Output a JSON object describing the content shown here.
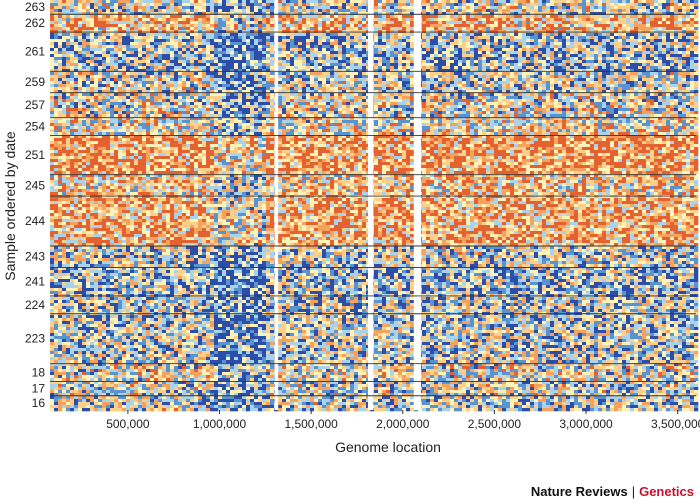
{
  "chart_data": {
    "type": "heatmap",
    "title": "",
    "xlabel": "Genome location",
    "ylabel": "Sample ordered by date",
    "xlim": [
      75000,
      3600000
    ],
    "x_ticks": [
      500000,
      1000000,
      1500000,
      2000000,
      2500000,
      3000000,
      3500000
    ],
    "x_tick_labels": [
      "500,000",
      "1,000,000",
      "1,500,000",
      "2,000,000",
      "2,500,000",
      "3,000,000",
      "3,500,000"
    ],
    "samples_top_to_bottom": [
      "263",
      "262",
      "261",
      "259",
      "257",
      "254",
      "251",
      "245",
      "244",
      "243",
      "241",
      "224",
      "223",
      "18",
      "17",
      "16"
    ],
    "sample_row_share": [
      4,
      5,
      11,
      6,
      7,
      5,
      11,
      6,
      14,
      6,
      8,
      5,
      14,
      5,
      4,
      4
    ],
    "gaps_genome_location": [
      [
        1300000,
        1320000
      ],
      [
        1810000,
        1840000
      ],
      [
        2060000,
        2100000
      ]
    ],
    "color_scale": [
      "#2c4ea8",
      "#5a94d0",
      "#a9d3ec",
      "#fdf2b8",
      "#fcd08a",
      "#f4a25c",
      "#e4622f"
    ]
  },
  "credit": {
    "publisher": "Nature Reviews",
    "separator": "|",
    "journal": "Genetics"
  }
}
